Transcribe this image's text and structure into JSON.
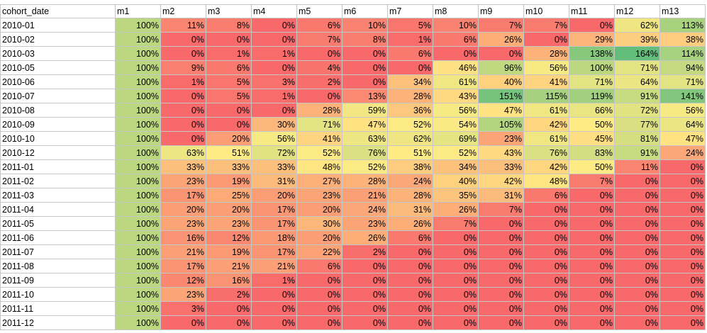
{
  "sheet": {
    "headers": [
      "cohort_date",
      "m1",
      "m2",
      "m3",
      "m4",
      "m5",
      "m6",
      "m7",
      "m8",
      "m9",
      "m10",
      "m11",
      "m12",
      "m13"
    ],
    "rows": [
      {
        "date": "2010-01",
        "values": [
          100,
          11,
          8,
          0,
          6,
          10,
          5,
          10,
          7,
          7,
          0,
          62,
          113
        ]
      },
      {
        "date": "2010-02",
        "values": [
          100,
          0,
          0,
          0,
          7,
          8,
          1,
          6,
          26,
          0,
          29,
          39,
          38
        ]
      },
      {
        "date": "2010-03",
        "values": [
          100,
          0,
          1,
          1,
          0,
          0,
          6,
          0,
          0,
          28,
          138,
          164,
          114
        ]
      },
      {
        "date": "2010-05",
        "values": [
          100,
          9,
          6,
          0,
          4,
          0,
          0,
          46,
          96,
          56,
          100,
          71,
          94
        ]
      },
      {
        "date": "2010-06",
        "values": [
          100,
          1,
          5,
          3,
          2,
          0,
          34,
          61,
          40,
          41,
          71,
          64,
          71
        ]
      },
      {
        "date": "2010-07",
        "values": [
          100,
          0,
          5,
          1,
          0,
          13,
          28,
          43,
          151,
          115,
          119,
          91,
          141
        ]
      },
      {
        "date": "2010-08",
        "values": [
          100,
          0,
          0,
          0,
          28,
          59,
          36,
          56,
          47,
          61,
          66,
          72,
          56
        ]
      },
      {
        "date": "2010-09",
        "values": [
          100,
          0,
          0,
          30,
          71,
          47,
          52,
          54,
          105,
          42,
          50,
          77,
          64
        ]
      },
      {
        "date": "2010-10",
        "values": [
          100,
          0,
          20,
          56,
          41,
          63,
          62,
          69,
          23,
          61,
          45,
          81,
          47
        ]
      },
      {
        "date": "2010-12",
        "values": [
          100,
          63,
          51,
          72,
          52,
          76,
          51,
          52,
          43,
          76,
          83,
          91,
          24
        ]
      },
      {
        "date": "2011-01",
        "values": [
          100,
          33,
          33,
          33,
          48,
          52,
          38,
          34,
          33,
          42,
          50,
          11,
          0
        ]
      },
      {
        "date": "2011-02",
        "values": [
          100,
          23,
          19,
          31,
          27,
          28,
          24,
          40,
          42,
          48,
          7,
          0,
          0
        ]
      },
      {
        "date": "2011-03",
        "values": [
          100,
          17,
          25,
          20,
          23,
          21,
          28,
          35,
          31,
          6,
          0,
          0,
          0
        ]
      },
      {
        "date": "2011-04",
        "values": [
          100,
          20,
          20,
          17,
          20,
          24,
          31,
          26,
          7,
          0,
          0,
          0,
          0
        ]
      },
      {
        "date": "2011-05",
        "values": [
          100,
          23,
          23,
          17,
          30,
          23,
          26,
          7,
          0,
          0,
          0,
          0,
          0
        ]
      },
      {
        "date": "2011-06",
        "values": [
          100,
          16,
          12,
          18,
          20,
          26,
          6,
          0,
          0,
          0,
          0,
          0,
          0
        ]
      },
      {
        "date": "2011-07",
        "values": [
          100,
          21,
          19,
          17,
          22,
          2,
          0,
          0,
          0,
          0,
          0,
          0,
          0
        ]
      },
      {
        "date": "2011-08",
        "values": [
          100,
          17,
          21,
          21,
          6,
          0,
          0,
          0,
          0,
          0,
          0,
          0,
          0
        ]
      },
      {
        "date": "2011-09",
        "values": [
          100,
          12,
          16,
          1,
          0,
          0,
          0,
          0,
          0,
          0,
          0,
          0,
          0
        ]
      },
      {
        "date": "2011-10",
        "values": [
          100,
          23,
          2,
          0,
          0,
          0,
          0,
          0,
          0,
          0,
          0,
          0,
          0
        ]
      },
      {
        "date": "2011-11",
        "values": [
          100,
          3,
          0,
          0,
          0,
          0,
          0,
          0,
          0,
          0,
          0,
          0,
          0
        ]
      },
      {
        "date": "2011-12",
        "values": [
          100,
          0,
          0,
          0,
          0,
          0,
          0,
          0,
          0,
          0,
          0,
          0,
          0
        ]
      }
    ],
    "value_suffix": "%"
  },
  "color_scale": {
    "low": "#f8696b",
    "mid": "#ffeb84",
    "high": "#63be7b"
  }
}
